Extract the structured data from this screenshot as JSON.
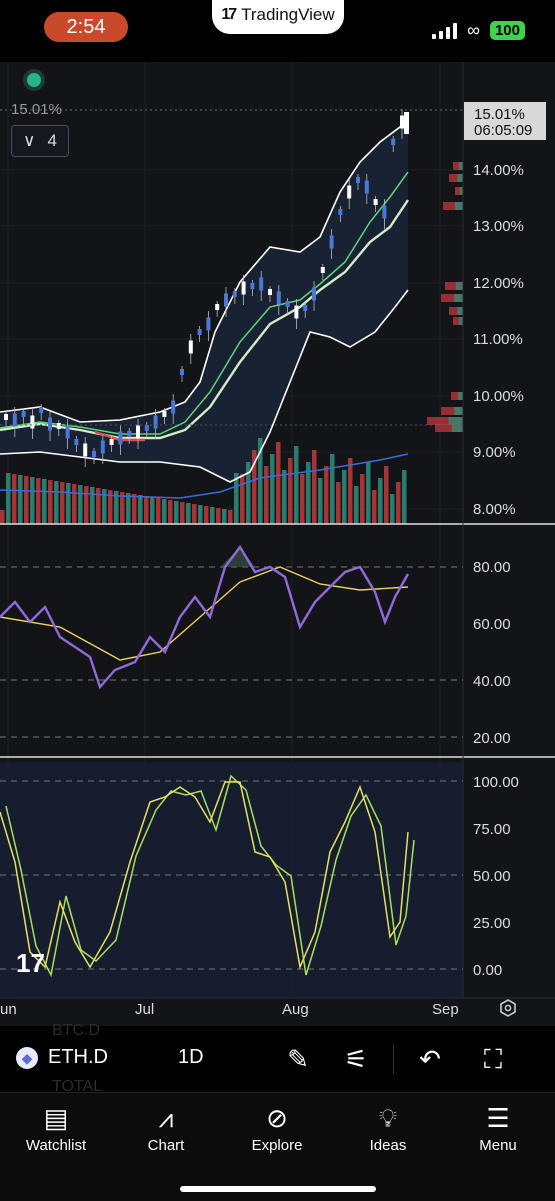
{
  "status": {
    "time": "2:54",
    "app": "TradingView",
    "battery": "100"
  },
  "chart": {
    "top_label": "15.01%",
    "price_tag": {
      "value": "15.01%",
      "countdown": "06:05:09"
    },
    "stepper_value": "4",
    "price_axis": [
      "14.00%",
      "13.00%",
      "12.00%",
      "11.00%",
      "10.00%",
      "9.00%",
      "8.00%"
    ],
    "rsi_axis": [
      "80.00",
      "60.00",
      "40.00",
      "20.00"
    ],
    "stoch_axis": [
      "100.00",
      "75.00",
      "50.00",
      "25.00",
      "0.00"
    ],
    "time_axis": [
      "un",
      "Jul",
      "Aug",
      "Sep"
    ]
  },
  "ticker": {
    "symbol": "ETH.D",
    "timeframe": "1D",
    "ghost_above": "BTC.D",
    "ghost_below": "TOTAL"
  },
  "nav": {
    "items": [
      {
        "label": "Watchlist"
      },
      {
        "label": "Chart"
      },
      {
        "label": "Explore"
      },
      {
        "label": "Ideas"
      },
      {
        "label": "Menu"
      }
    ]
  },
  "colors": {
    "up": "#2f8f7b",
    "down": "#c0393d",
    "candle_up": "#4a78d8",
    "candle_down": "#ffffff",
    "rsi": "#8f6ad8",
    "signal": "#f0d060",
    "stoch_k": "#e8e060",
    "stoch_d": "#a8e060"
  }
}
